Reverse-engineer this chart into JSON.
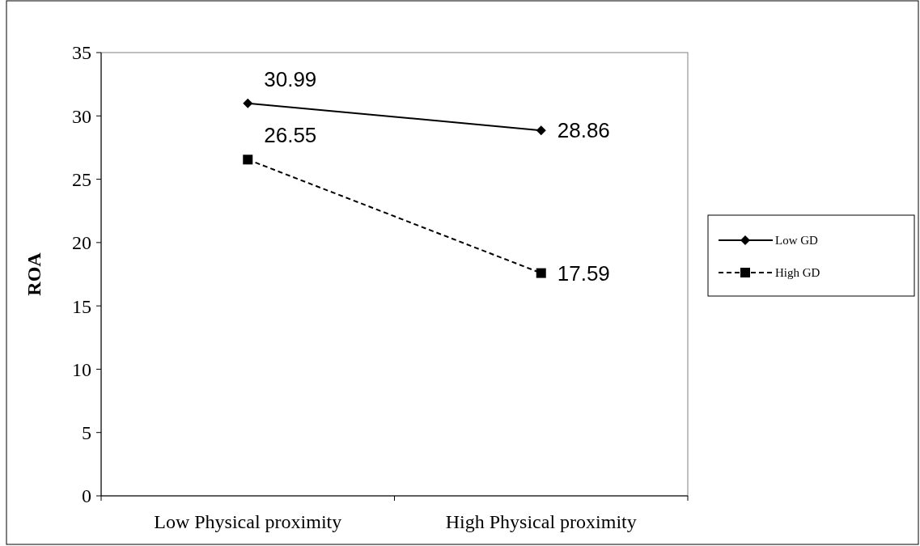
{
  "chart_data": {
    "type": "line",
    "ylabel": "ROA",
    "categories": [
      "Low Physical proximity",
      "High Physical proximity"
    ],
    "series": [
      {
        "name": "Low GD",
        "color": "#000000",
        "values": [
          30.99,
          28.86
        ],
        "marker": "diamond",
        "line_style": "solid"
      },
      {
        "name": "High GD",
        "color": "#000000",
        "values": [
          26.55,
          17.59
        ],
        "marker": "square",
        "line_style": "dashed"
      }
    ],
    "ylim": [
      0,
      35
    ],
    "yticks": [
      0,
      5,
      10,
      15,
      20,
      25,
      30,
      35
    ],
    "grid": false,
    "legend": "right",
    "data_labels": true
  }
}
